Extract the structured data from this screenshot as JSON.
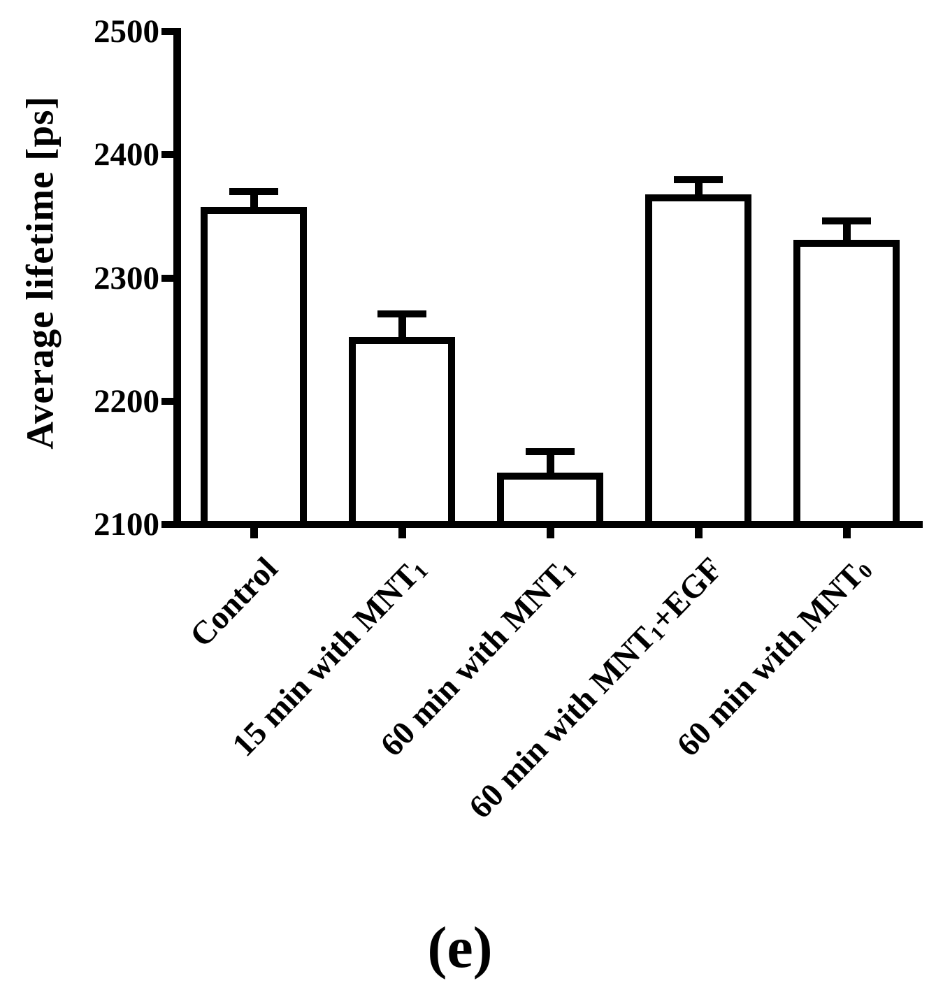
{
  "figure": {
    "caption": "(e)",
    "background_color": "#ffffff",
    "ink_color": "#000000"
  },
  "chart_data": {
    "type": "bar",
    "title": "",
    "xlabel": "",
    "ylabel": "Average lifetime [ps]",
    "ylim": [
      2100,
      2500
    ],
    "yticks": [
      2500,
      2400,
      2300,
      2200,
      2100
    ],
    "grid": false,
    "legend": false,
    "bar_fill": "#ffffff",
    "bar_stroke": "#000000",
    "error_bars": "upper-only",
    "categories": [
      {
        "text": "Control",
        "sub": "",
        "suffix": ""
      },
      {
        "text": "15 min with MNT",
        "sub": "1",
        "suffix": ""
      },
      {
        "text": "60 min with MNT",
        "sub": "1",
        "suffix": ""
      },
      {
        "text": "60 min with MNT",
        "sub": "1",
        "suffix": "+EGF"
      },
      {
        "text": "60 min with MNT",
        "sub": "0",
        "suffix": ""
      }
    ],
    "series": [
      {
        "name": "Average lifetime",
        "values": [
          2355,
          2249,
          2139,
          2365,
          2328
        ],
        "errors_plus": [
          15,
          22,
          20,
          15,
          18
        ]
      }
    ]
  }
}
